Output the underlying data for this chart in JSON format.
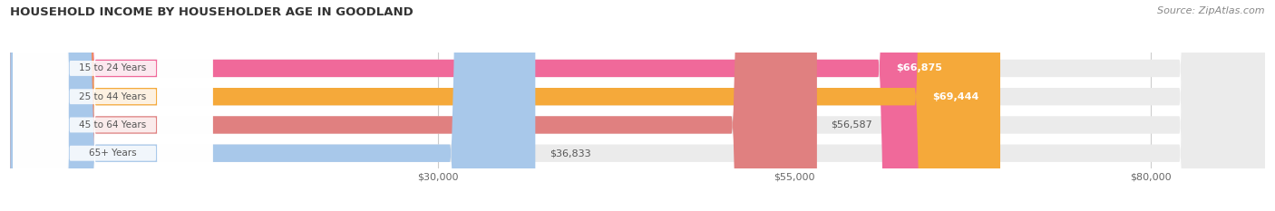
{
  "title": "HOUSEHOLD INCOME BY HOUSEHOLDER AGE IN GOODLAND",
  "source": "Source: ZipAtlas.com",
  "categories": [
    "15 to 24 Years",
    "25 to 44 Years",
    "45 to 64 Years",
    "65+ Years"
  ],
  "values": [
    66875,
    69444,
    56587,
    36833
  ],
  "bar_colors": [
    "#f0699a",
    "#f5a93a",
    "#e08080",
    "#a8c8ea"
  ],
  "bar_bg_color": "#ebebeb",
  "value_labels": [
    "$66,875",
    "$69,444",
    "$56,587",
    "$36,833"
  ],
  "value_label_colors": [
    "white",
    "white",
    "#555555",
    "#555555"
  ],
  "value_label_inside": [
    true,
    true,
    false,
    false
  ],
  "cat_label_color": "#555555",
  "xticks": [
    30000,
    55000,
    80000
  ],
  "xtick_labels": [
    "$30,000",
    "$55,000",
    "$80,000"
  ],
  "xmin": 0,
  "xmax": 88000,
  "figsize": [
    14.06,
    2.33
  ],
  "dpi": 100
}
